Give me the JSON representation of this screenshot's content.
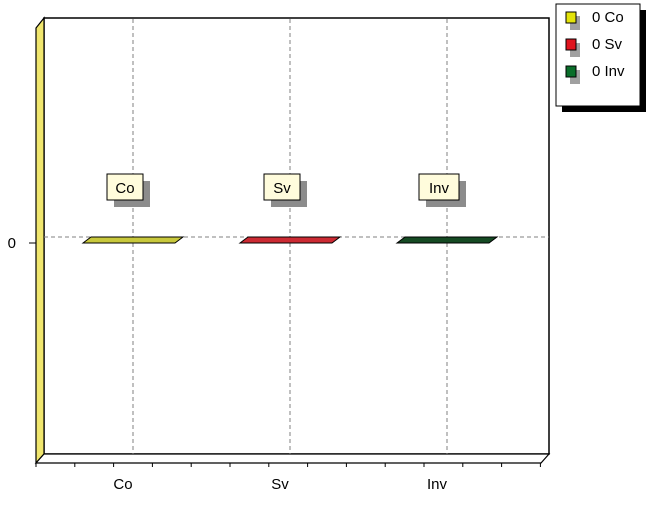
{
  "chart_data": {
    "type": "bar",
    "categories": [
      "Co",
      "Sv",
      "Inv"
    ],
    "series": [
      {
        "name": "Co",
        "values": [
          0,
          null,
          null
        ],
        "color": "#c8c83c"
      },
      {
        "name": "Sv",
        "values": [
          null,
          0,
          null
        ],
        "color": "#cc2a33"
      },
      {
        "name": "Inv",
        "values": [
          null,
          null,
          0
        ],
        "color": "#154a23"
      }
    ],
    "y_ticks": [
      0
    ],
    "y_tick_labels": [
      "0"
    ],
    "bar_labels": [
      "Co",
      "Sv",
      "Inv"
    ],
    "legend": {
      "position": "top-right",
      "entries": [
        {
          "label": "0 Co",
          "color": "#e4e40a"
        },
        {
          "label": "0 Sv",
          "color": "#e0141e"
        },
        {
          "label": "0 Inv",
          "color": "#0a6e2a"
        }
      ]
    },
    "grid": true,
    "wall_color": "#f0e66e",
    "title": "",
    "xlabel": "",
    "ylabel": ""
  }
}
